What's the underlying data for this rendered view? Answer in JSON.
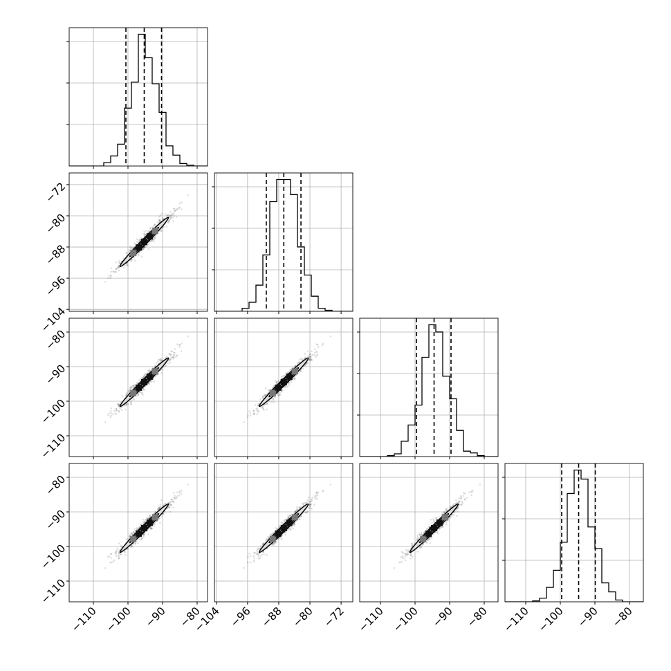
{
  "chart_data": {
    "type": "corner",
    "n_params": 4,
    "title": "",
    "params": [
      {
        "name": "",
        "range": [
          -117,
          -77
        ],
        "ticks": [
          -110,
          -100,
          -90,
          -80
        ],
        "quantiles": [
          -100.6,
          -95.3,
          -90.3
        ],
        "mean": -95.3,
        "sd": 4.0
      },
      {
        "name": "",
        "range": [
          -104.5,
          -69
        ],
        "ticks": [
          -104,
          -96,
          -88,
          -80,
          -72
        ],
        "quantiles": [
          -91.2,
          -86.7,
          -82.3
        ],
        "mean": -86.7,
        "sd": 3.6
      },
      {
        "name": "",
        "range": [
          -116,
          -76
        ],
        "ticks": [
          -110,
          -100,
          -90,
          -80
        ],
        "quantiles": [
          -99.6,
          -94.5,
          -89.6
        ],
        "mean": -94.5,
        "sd": 4.0
      },
      {
        "name": "",
        "range": [
          -116,
          -76
        ],
        "ticks": [
          -110,
          -100,
          -90,
          -80
        ],
        "quantiles": [
          -99.6,
          -94.7,
          -89.9
        ],
        "mean": -94.7,
        "sd": 4.0
      }
    ],
    "histogram_bins": 20,
    "grid": true,
    "linestyle_quantiles": "dashed",
    "colors": {
      "hist": "#000000",
      "contour": "#000000",
      "fill": "#dddddd",
      "grid": "#b0b0b0"
    }
  }
}
